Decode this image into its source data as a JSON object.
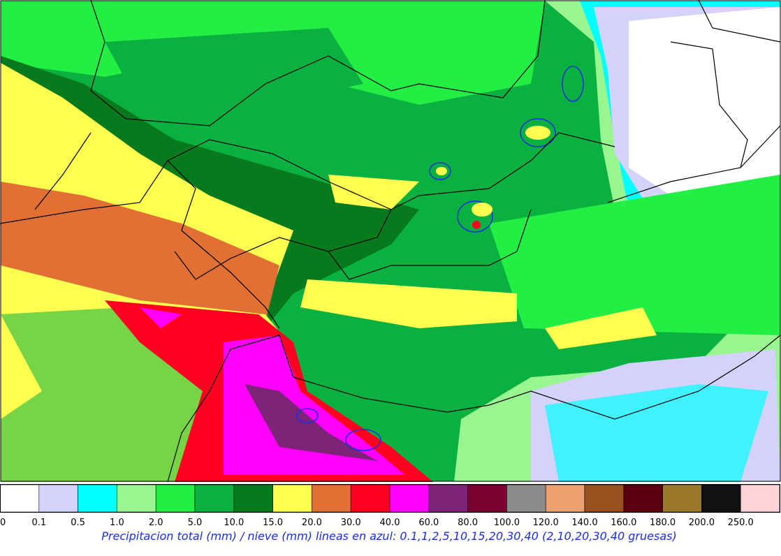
{
  "colorbar": {
    "colors": [
      "#ffffff",
      "#d2d2fa",
      "#00ffff",
      "#99f58f",
      "#22ee44",
      "#0ab040",
      "#077a1e",
      "#ffff50",
      "#e07033",
      "#ff0020",
      "#ff00ff",
      "#7d2478",
      "#7a0030",
      "#8c8c8c",
      "#eca070",
      "#98501e",
      "#5a0010",
      "#9a7a2a",
      "#111111",
      "#ffd2da"
    ],
    "labels": [
      "0",
      "0.1",
      "0.5",
      "1.0",
      "2.0",
      "5.0",
      "10.0",
      "15.0",
      "20.0",
      "30.0",
      "40.0",
      "60.0",
      "80.0",
      "100.0",
      "120.0",
      "140.0",
      "160.0",
      "180.0",
      "200.0",
      "250.0"
    ]
  },
  "caption": "Precipitacion total (mm) / nieve (mm) lineas en azul: 0.1,1,2,5,10,15,20,30,40  (2,10,20,30,40 gruesas)"
}
